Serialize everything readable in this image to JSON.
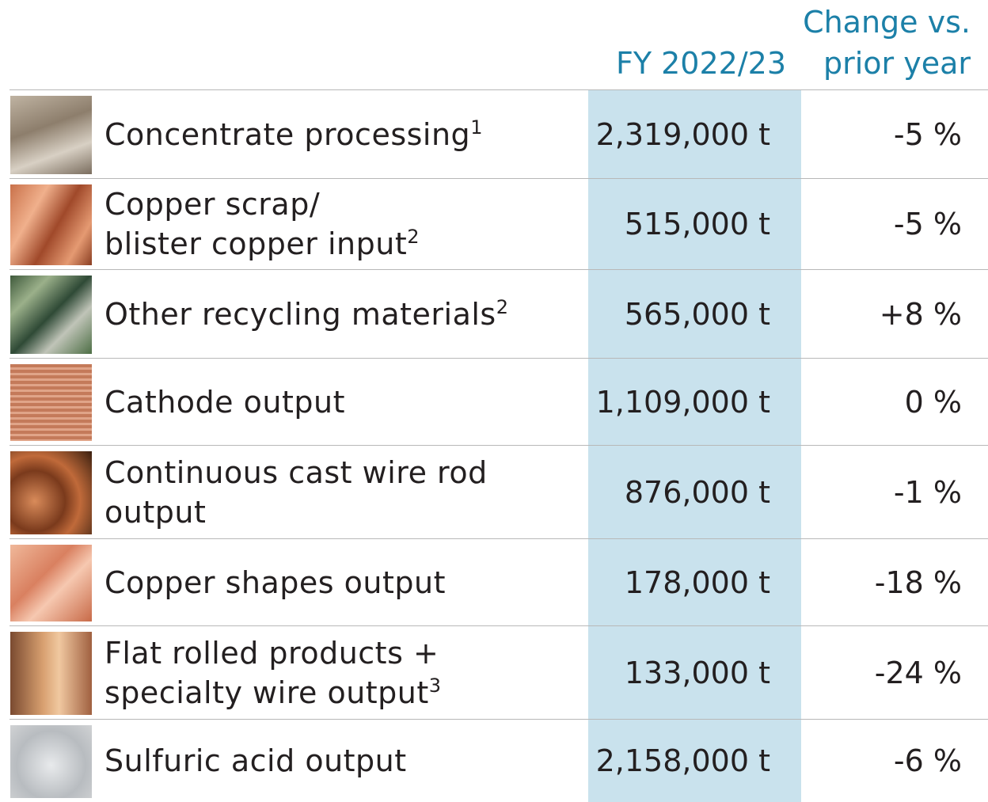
{
  "header": {
    "value_column": "FY 2022/23",
    "change_column": [
      "Change vs.",
      "prior year"
    ]
  },
  "table": {
    "rows": [
      {
        "label": [
          "Concentrate processing"
        ],
        "note": "1",
        "value": "2,319,000 t",
        "change": "-5 %"
      },
      {
        "label": [
          "Copper scrap/",
          "blister copper input"
        ],
        "note": "2",
        "value": "515,000 t",
        "change": "-5 %"
      },
      {
        "label": [
          "Other recycling materials"
        ],
        "note": "2",
        "value": "565,000 t",
        "change": "+8 %"
      },
      {
        "label": [
          "Cathode output"
        ],
        "value": "1,109,000 t",
        "change": "0 %"
      },
      {
        "label": [
          "Continuous cast wire rod",
          "output"
        ],
        "value": "876,000 t",
        "change": "-1 %"
      },
      {
        "label": [
          "Copper shapes output"
        ],
        "value": "178,000 t",
        "change": "-18 %"
      },
      {
        "label": [
          "Flat rolled products +",
          "specialty wire output"
        ],
        "note": "3",
        "value": "133,000 t",
        "change": "-24 %"
      },
      {
        "label": [
          "Sulfuric acid output"
        ],
        "value": "2,158,000 t",
        "change": "-6 %"
      }
    ]
  }
}
